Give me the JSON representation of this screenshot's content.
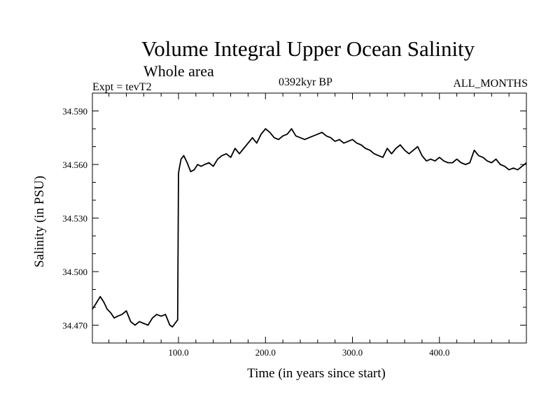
{
  "chart_data": {
    "type": "line",
    "title": "Volume Integral Upper Ocean Salinity",
    "subtitle": "Whole area",
    "experiment_label": "Expt = tevT2",
    "period_label": "0392kyr BP",
    "months_label": "ALL_MONTHS",
    "xlabel": "Time (in years since start)",
    "ylabel": "Salinity (in PSU)",
    "xlim": [
      1,
      500
    ],
    "ylim": [
      34.46,
      34.6
    ],
    "xticks": [
      100,
      200,
      300,
      400
    ],
    "xtick_labels": [
      "100.0",
      "200.0",
      "300.0",
      "400.0"
    ],
    "yticks": [
      34.47,
      34.5,
      34.53,
      34.56,
      34.59
    ],
    "ytick_labels": [
      "34.470",
      "34.500",
      "34.530",
      "34.560",
      "34.590"
    ],
    "grid": false,
    "series": [
      {
        "color": "#000000",
        "x": [
          1,
          5,
          10,
          14,
          18,
          22,
          26,
          30,
          35,
          40,
          45,
          50,
          55,
          60,
          65,
          70,
          75,
          80,
          85,
          90,
          93,
          96,
          99,
          100,
          101,
          103,
          106,
          110,
          114,
          118,
          122,
          126,
          130,
          135,
          140,
          145,
          150,
          155,
          160,
          165,
          170,
          175,
          180,
          185,
          190,
          195,
          200,
          205,
          210,
          215,
          220,
          225,
          230,
          235,
          240,
          245,
          250,
          255,
          260,
          265,
          270,
          275,
          280,
          285,
          290,
          295,
          300,
          305,
          310,
          315,
          320,
          325,
          330,
          335,
          340,
          345,
          350,
          355,
          360,
          365,
          370,
          375,
          380,
          385,
          390,
          395,
          400,
          405,
          410,
          415,
          420,
          425,
          430,
          435,
          440,
          445,
          450,
          455,
          460,
          465,
          470,
          475,
          480,
          485,
          490,
          495,
          500
        ],
        "y": [
          34.479,
          34.482,
          34.486,
          34.483,
          34.479,
          34.477,
          34.474,
          34.475,
          34.476,
          34.478,
          34.472,
          34.47,
          34.472,
          34.471,
          34.47,
          34.474,
          34.476,
          34.475,
          34.476,
          34.47,
          34.469,
          34.471,
          34.473,
          34.555,
          34.558,
          34.563,
          34.565,
          34.561,
          34.556,
          34.557,
          34.56,
          34.559,
          34.56,
          34.561,
          34.559,
          34.563,
          34.565,
          34.566,
          34.564,
          34.569,
          34.566,
          34.569,
          34.572,
          34.575,
          34.572,
          34.577,
          34.58,
          34.578,
          34.575,
          34.574,
          34.576,
          34.577,
          34.58,
          34.576,
          34.575,
          34.574,
          34.575,
          34.576,
          34.577,
          34.578,
          34.576,
          34.575,
          34.573,
          34.574,
          34.572,
          34.573,
          34.574,
          34.572,
          34.571,
          34.569,
          34.568,
          34.566,
          34.565,
          34.564,
          34.569,
          34.566,
          34.569,
          34.571,
          34.568,
          34.566,
          34.568,
          34.57,
          34.565,
          34.562,
          34.563,
          34.562,
          34.564,
          34.562,
          34.561,
          34.561,
          34.563,
          34.561,
          34.56,
          34.561,
          34.568,
          34.565,
          34.564,
          34.562,
          34.561,
          34.563,
          34.56,
          34.559,
          34.557,
          34.558,
          34.557,
          34.559,
          34.561
        ]
      }
    ]
  }
}
